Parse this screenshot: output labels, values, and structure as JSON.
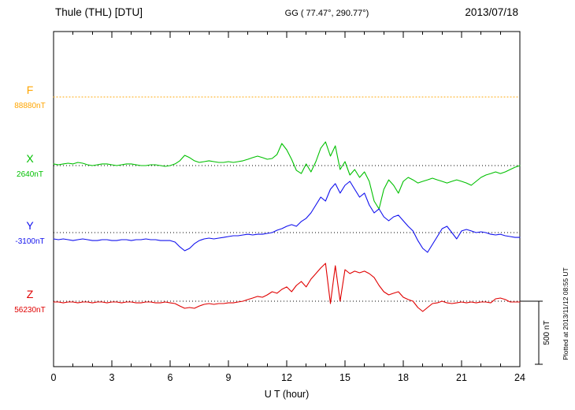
{
  "header": {
    "station": "Thule (THL)  [DTU]",
    "coords": "GG ( 77.47°, 290.77°)",
    "date": "2013/07/18"
  },
  "xaxis": {
    "label": "U T (hour)",
    "min": 0,
    "max": 24,
    "minor_step": 1,
    "ticks": [
      0,
      3,
      6,
      9,
      12,
      15,
      18,
      21,
      24
    ]
  },
  "scalebar": {
    "label": "500 nT",
    "nT": 500
  },
  "footer_note": "Plotted at 2013/11/12 08:55 UT",
  "chart_data": {
    "type": "line",
    "title": "Thule (THL) [DTU] magnetogram 2013/07/18",
    "xlabel": "U T (hour)",
    "x_unit": "hour",
    "x_range": [
      0,
      24
    ],
    "y_unit": "nT",
    "values_are": "deviation in nT from each component baseline, sampled every 0.25 h",
    "scale_bar_nT": 500,
    "grid": "dotted baseline per component",
    "legend_position": "left margin",
    "series": [
      {
        "name": "F",
        "baseline_label": "88880nT",
        "baseline_nT": 88880,
        "color": "#FFA500",
        "style": "dotted",
        "values": [
          0,
          0
        ]
      },
      {
        "name": "X",
        "baseline_label": "2640nT",
        "baseline_nT": 2640,
        "color": "#00C000",
        "style": "solid",
        "values": [
          13,
          6,
          13,
          19,
          13,
          25,
          19,
          6,
          0,
          6,
          13,
          13,
          6,
          0,
          6,
          13,
          13,
          6,
          0,
          0,
          6,
          6,
          0,
          -6,
          0,
          13,
          38,
          81,
          63,
          38,
          25,
          31,
          38,
          31,
          25,
          25,
          31,
          25,
          31,
          38,
          50,
          63,
          75,
          63,
          50,
          56,
          88,
          175,
          125,
          50,
          -38,
          -63,
          13,
          -50,
          31,
          138,
          188,
          75,
          156,
          -31,
          31,
          -75,
          -31,
          -94,
          -50,
          -125,
          -281,
          -344,
          -188,
          -113,
          -156,
          -219,
          -125,
          -94,
          -113,
          -138,
          -125,
          -113,
          -100,
          -113,
          -125,
          -138,
          -125,
          -113,
          -125,
          -138,
          -156,
          -125,
          -94,
          -75,
          -63,
          -50,
          -63,
          -50,
          -31,
          -13,
          0
        ]
      },
      {
        "name": "Y",
        "baseline_label": "-3100nT",
        "baseline_nT": -3100,
        "color": "#1010EE",
        "style": "solid",
        "values": [
          -50,
          -56,
          -50,
          -56,
          -63,
          -56,
          -50,
          -56,
          -63,
          -63,
          -56,
          -56,
          -63,
          -63,
          -56,
          -56,
          -63,
          -56,
          -56,
          -50,
          -56,
          -56,
          -63,
          -63,
          -63,
          -75,
          -113,
          -144,
          -125,
          -88,
          -63,
          -50,
          -44,
          -50,
          -44,
          -38,
          -31,
          -25,
          -25,
          -19,
          -13,
          -19,
          -13,
          -13,
          -6,
          0,
          19,
          31,
          50,
          63,
          50,
          88,
          113,
          156,
          219,
          281,
          250,
          344,
          388,
          313,
          375,
          406,
          344,
          281,
          313,
          219,
          156,
          188,
          125,
          94,
          125,
          138,
          94,
          50,
          13,
          -63,
          -125,
          -156,
          -94,
          -31,
          31,
          50,
          0,
          -50,
          13,
          25,
          13,
          0,
          6,
          0,
          -13,
          -19,
          -13,
          -25,
          -31,
          -38,
          -38
        ]
      },
      {
        "name": "Z",
        "baseline_label": "56230nT",
        "baseline_nT": 56230,
        "color": "#E00000",
        "style": "solid",
        "values": [
          -6,
          -6,
          -13,
          -6,
          -6,
          -13,
          -6,
          -6,
          -13,
          -6,
          -6,
          -13,
          -6,
          -6,
          -13,
          -6,
          -6,
          -13,
          -13,
          -6,
          -6,
          -13,
          -13,
          -6,
          -13,
          -19,
          -38,
          -56,
          -50,
          -56,
          -38,
          -25,
          -19,
          -25,
          -19,
          -19,
          -13,
          -13,
          -6,
          0,
          13,
          25,
          38,
          31,
          50,
          75,
          63,
          94,
          113,
          75,
          125,
          156,
          113,
          175,
          219,
          263,
          300,
          -19,
          281,
          0,
          250,
          219,
          238,
          225,
          238,
          219,
          188,
          125,
          75,
          50,
          63,
          75,
          31,
          13,
          0,
          -50,
          -81,
          -50,
          -19,
          -13,
          0,
          -13,
          -19,
          -13,
          -6,
          -13,
          -6,
          -13,
          -6,
          -6,
          -13,
          19,
          25,
          13,
          -6,
          -6,
          -6
        ]
      }
    ]
  }
}
